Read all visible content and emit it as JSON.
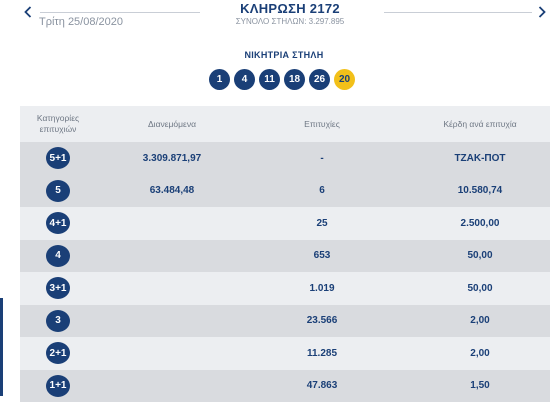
{
  "header": {
    "date": "Τρίτη 25/08/2020",
    "title": "ΚΛΗΡΩΣΗ 2172",
    "columns": "ΣΥΝΟΛΟ ΣΤΗΛΩΝ: 3.297.895"
  },
  "winning": {
    "label": "ΝΙΚΗΤΡΙΑ ΣΤΗΛΗ",
    "numbers": [
      "1",
      "4",
      "11",
      "18",
      "26"
    ],
    "joker": "20"
  },
  "table": {
    "headers": {
      "category_line1": "Κατηγορίες",
      "category_line2": "επιτυχιών",
      "distributed": "Διανεμόμενα",
      "winners": "Επιτυχίες",
      "prize": "Κέρδη ανά επιτυχία"
    },
    "rows": [
      {
        "category": "5+1",
        "distributed": "3.309.871,97",
        "winners": "-",
        "prize": "ΤΖΑΚ-ΠΟΤ"
      },
      {
        "category": "5",
        "distributed": "63.484,48",
        "winners": "6",
        "prize": "10.580,74"
      },
      {
        "category": "4+1",
        "distributed": "",
        "winners": "25",
        "prize": "2.500,00"
      },
      {
        "category": "4",
        "distributed": "",
        "winners": "653",
        "prize": "50,00"
      },
      {
        "category": "3+1",
        "distributed": "",
        "winners": "1.019",
        "prize": "50,00"
      },
      {
        "category": "3",
        "distributed": "",
        "winners": "23.566",
        "prize": "2,00"
      },
      {
        "category": "2+1",
        "distributed": "",
        "winners": "11.285",
        "prize": "2,00"
      },
      {
        "category": "1+1",
        "distributed": "",
        "winners": "47.863",
        "prize": "1,50"
      }
    ]
  },
  "colors": {
    "primary": "#1a3f77",
    "joker": "#f2c019",
    "row_alt": "#d9dbdf",
    "header_bg": "#eceef1"
  },
  "icons": {
    "prev": "chevron-left-icon",
    "next": "chevron-right-icon"
  }
}
